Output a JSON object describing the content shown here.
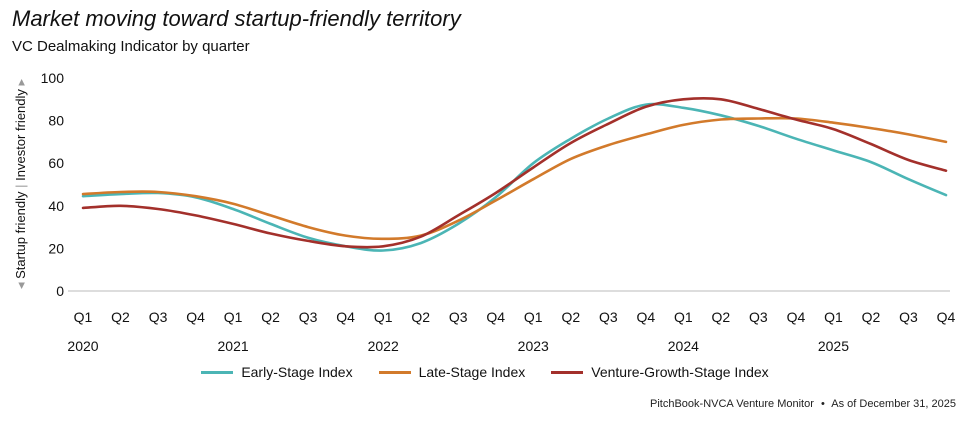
{
  "chart_data": {
    "type": "line",
    "title": "Market moving toward startup-friendly territory",
    "subtitle": "VC Dealmaking Indicator by quarter",
    "ylabel_low": "Startup friendly",
    "ylabel_high": "Investor friendly",
    "ylim": [
      0,
      100
    ],
    "yticks": [
      0,
      20,
      40,
      60,
      80,
      100
    ],
    "categories": [
      "Q1",
      "Q2",
      "Q3",
      "Q4",
      "Q1",
      "Q2",
      "Q3",
      "Q4",
      "Q1",
      "Q2",
      "Q3",
      "Q4",
      "Q1",
      "Q2",
      "Q3",
      "Q4",
      "Q1",
      "Q2",
      "Q3",
      "Q4",
      "Q1",
      "Q2",
      "Q3",
      "Q4"
    ],
    "years": [
      "2020",
      "2021",
      "2022",
      "2023",
      "2024",
      "2025"
    ],
    "series": [
      {
        "name": "Early-Stage Index",
        "color": "#4bb5b5",
        "values": [
          44.5,
          45.5,
          46,
          44,
          38.5,
          31.5,
          25,
          21,
          19,
          22.5,
          31.5,
          44,
          60,
          71.5,
          81,
          87.5,
          86,
          82.5,
          77.5,
          71.5,
          66,
          60.5,
          52.5,
          45
        ]
      },
      {
        "name": "Late-Stage Index",
        "color": "#d27a2b",
        "values": [
          45.5,
          46.5,
          46.5,
          44.5,
          41,
          35.5,
          30,
          26,
          24.5,
          26,
          33,
          42.5,
          52.5,
          62,
          68.5,
          73.5,
          78,
          80.5,
          81,
          81,
          79,
          76.5,
          73.5,
          70
        ]
      },
      {
        "name": "Venture-Growth-Stage Index",
        "color": "#a3302b",
        "values": [
          39,
          40,
          38.5,
          35.5,
          31.5,
          27,
          23.5,
          21,
          21,
          25.5,
          35.5,
          46,
          58,
          69.5,
          78.5,
          86.5,
          90,
          90,
          85.5,
          80.5,
          76,
          69,
          61.5,
          56.5
        ]
      }
    ]
  },
  "source_text": "PitchBook-NVCA Venture Monitor",
  "separator": "•",
  "asof_text": "As of December 31, 2025"
}
